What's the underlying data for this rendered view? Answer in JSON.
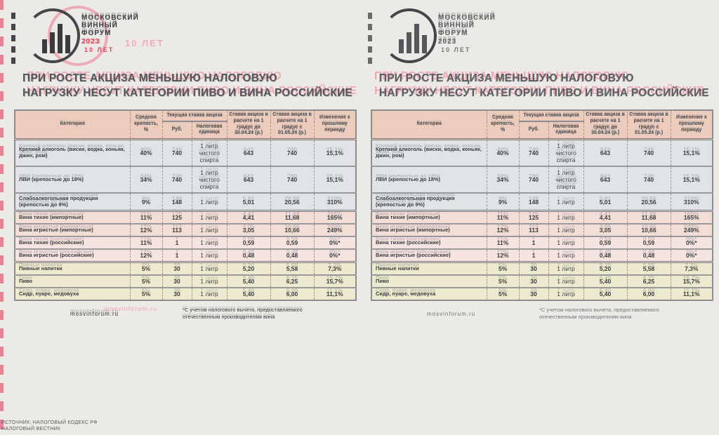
{
  "page": {
    "background": "#eceae6",
    "accent_red": "#d9455c",
    "accent_pink": "#f08ea2",
    "band_blue": "#e0e4e9",
    "band_pink": "#f3ded7",
    "band_cream": "#eeeacf",
    "header_band": "#ebccbd"
  },
  "logo": {
    "brand_line1": "МОСКОВСКИЙ",
    "brand_line2": "ВИННЫЙ",
    "brand_line3": "ФОРУМ",
    "year": "2023",
    "anniversary": "10 ЛЕТ"
  },
  "title": {
    "line1": "ПРИ РОСТЕ АКЦИЗА МЕНЬШУЮ НАЛОГОВУЮ",
    "line2": "НАГРУЗКУ НЕСУТ КАТЕГОРИИ ПИВО И ВИНА РОССИЙСКИЕ"
  },
  "table": {
    "headers": {
      "category": "Категория",
      "strength": "Средняя крепость, %",
      "current_rate_group": "Текущая ставка акциза",
      "rate_rub": "Руб.",
      "tax_unit": "Налоговая единица",
      "rate_before": "Ставка акциза в расчете на 1 градус до 30.04.24 (р.)",
      "rate_after": "Ставка акциза в расчете на 1 градус с 01.05.24 (р.)",
      "change": "Изменение к прошлому периоду"
    },
    "rows": [
      {
        "group": "spirits",
        "category": "Крепкий алкоголь (виски, водка, коньяк, джин, ром)",
        "strength": "40%",
        "rate": "740",
        "unit": "1 литр чистого спирта",
        "before": "643",
        "after": "740",
        "change": "15,1%"
      },
      {
        "group": "spirits",
        "category": "ЛВИ (крепостью до 18%)",
        "strength": "34%",
        "rate": "740",
        "unit": "1 литр чистого спирта",
        "before": "643",
        "after": "740",
        "change": "15,1%"
      },
      {
        "group": "spirits",
        "category": "Слабоалкогольная продукция (крепостью до 9%)",
        "strength": "9%",
        "rate": "148",
        "unit": "1 литр",
        "before": "5,01",
        "after": "20,56",
        "change": "310%"
      },
      {
        "group": "wine",
        "category": "Вина тихие (импортные)",
        "strength": "11%",
        "rate": "125",
        "unit": "1 литр",
        "before": "4,41",
        "after": "11,68",
        "change": "165%"
      },
      {
        "group": "wine",
        "category": "Вина игристые (импортные)",
        "strength": "12%",
        "rate": "113",
        "unit": "1 литр",
        "before": "3,05",
        "after": "10,66",
        "change": "249%"
      },
      {
        "group": "wine-ru",
        "category": "Вина тихие (российские)",
        "strength": "11%",
        "rate": "1",
        "unit": "1 литр",
        "before": "0,59",
        "after": "0,59",
        "change": "0%*"
      },
      {
        "group": "wine-ru",
        "category": "Вина игристые (российские)",
        "strength": "12%",
        "rate": "1",
        "unit": "1 литр",
        "before": "0,48",
        "after": "0,48",
        "change": "0%*"
      },
      {
        "group": "beer",
        "category": "Пивные напитки",
        "strength": "5%",
        "rate": "30",
        "unit": "1 литр",
        "before": "5,20",
        "after": "5,58",
        "change": "7,3%"
      },
      {
        "group": "beer",
        "category": "Пиво",
        "strength": "5%",
        "rate": "30",
        "unit": "1 литр",
        "before": "5,40",
        "after": "6,25",
        "change": "15,7%"
      },
      {
        "group": "beer",
        "category": "Сидр, пуаре, медовуха",
        "strength": "5%",
        "rate": "30",
        "unit": "1 литр",
        "before": "5,40",
        "after": "6,00",
        "change": "11,1%"
      }
    ]
  },
  "footer": {
    "site": "mosvinforum.ru",
    "footnote_line1": "*С учетом налогового вычета, предоставляемого",
    "footnote_line2": "отечественным производителям вина",
    "source_line1": "ИСТОЧНИК: НАЛОГОВЫЙ КОДЕКС РФ",
    "source_line2": "НАЛОГОВЫЙ ВЕСТНИК"
  }
}
